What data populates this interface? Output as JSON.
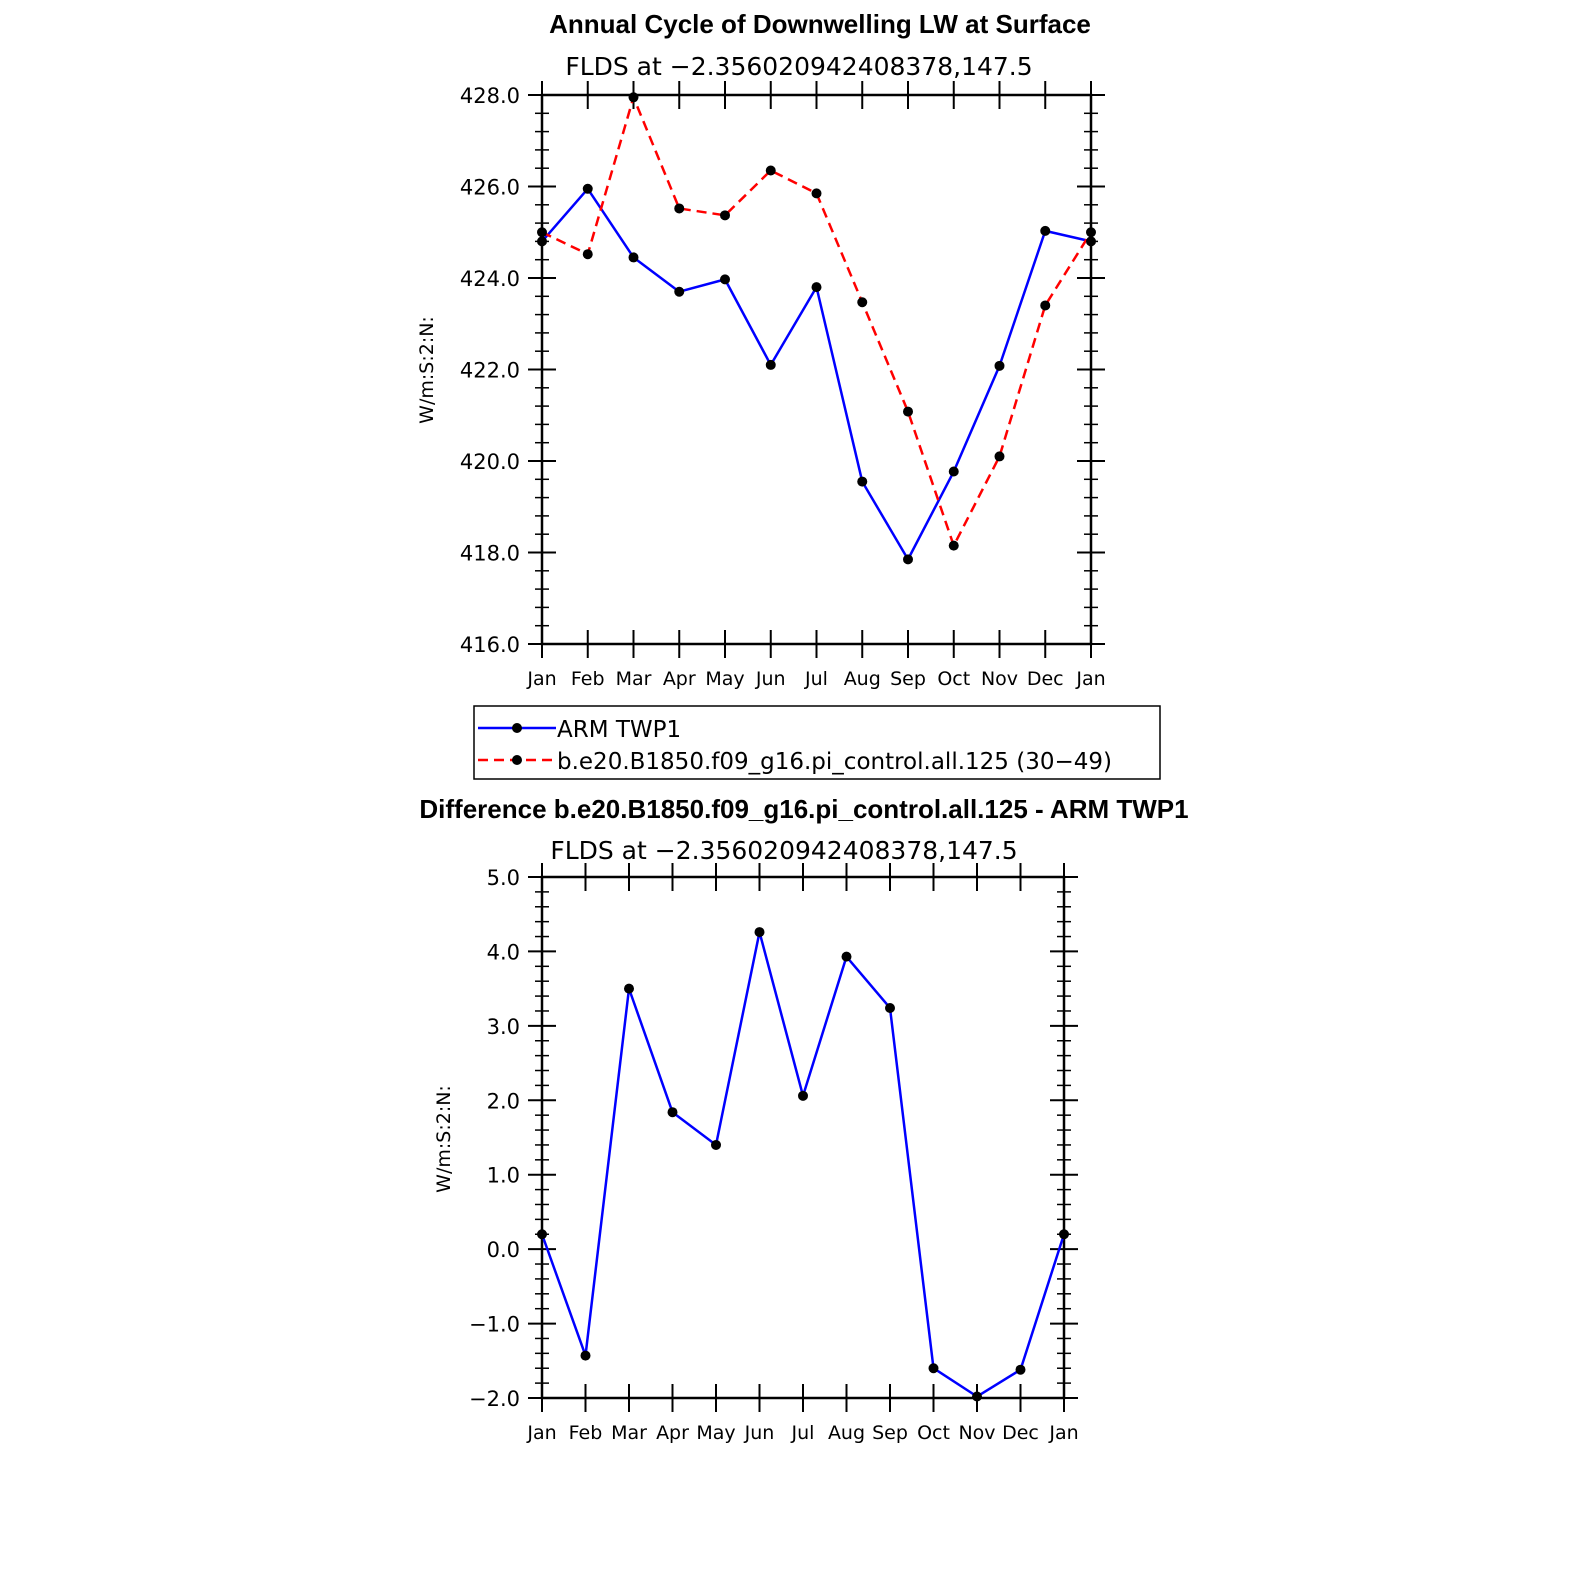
{
  "chart_data": [
    {
      "type": "line",
      "title": "Annual Cycle of Downwelling LW at Surface",
      "subtitle": "FLDS at −2.356020942408378,147.5",
      "ylabel": "W/m:S:2:N:",
      "ylim": [
        416.0,
        428.0
      ],
      "yticks": [
        "416.0",
        "418.0",
        "420.0",
        "422.0",
        "424.0",
        "426.0",
        "428.0"
      ],
      "categories": [
        "Jan",
        "Feb",
        "Mar",
        "Apr",
        "May",
        "Jun",
        "Jul",
        "Aug",
        "Sep",
        "Oct",
        "Nov",
        "Dec",
        "Jan"
      ],
      "series": [
        {
          "name": "ARM TWP1",
          "color": "#0000ff",
          "style": "solid",
          "values": [
            424.8,
            425.95,
            424.45,
            423.7,
            423.97,
            422.1,
            423.8,
            419.55,
            417.85,
            419.77,
            422.08,
            425.03,
            424.8
          ]
        },
        {
          "name": "b.e20.B1850.f09_g16.pi_control.all.125 (30−49)",
          "color": "#ff0000",
          "style": "dashed",
          "values": [
            425.0,
            424.52,
            427.95,
            425.52,
            425.37,
            426.35,
            425.85,
            423.47,
            421.08,
            418.15,
            420.1,
            423.4,
            425.0
          ]
        }
      ],
      "legend": "below"
    },
    {
      "type": "line",
      "title": "Difference b.e20.B1850.f09_g16.pi_control.all.125 - ARM TWP1",
      "subtitle": "FLDS at −2.356020942408378,147.5",
      "ylabel": "W/m:S:2:N:",
      "ylim": [
        -2.0,
        5.0
      ],
      "yticks": [
        "−2.0",
        "−1.0",
        "0.0",
        "1.0",
        "2.0",
        "3.0",
        "4.0",
        "5.0"
      ],
      "categories": [
        "Jan",
        "Feb",
        "Mar",
        "Apr",
        "May",
        "Jun",
        "Jul",
        "Aug",
        "Sep",
        "Oct",
        "Nov",
        "Dec",
        "Jan"
      ],
      "series": [
        {
          "color": "#0000ff",
          "style": "solid",
          "values": [
            0.2,
            -1.43,
            3.5,
            1.84,
            1.4,
            4.26,
            2.06,
            3.93,
            3.24,
            -1.6,
            -1.98,
            -1.62,
            0.2
          ]
        }
      ]
    }
  ]
}
